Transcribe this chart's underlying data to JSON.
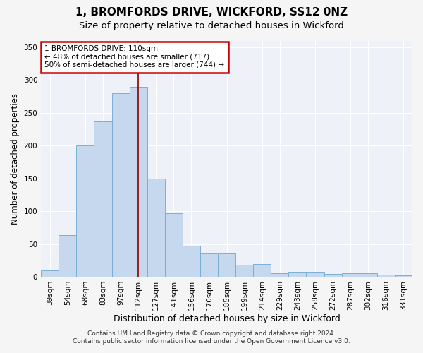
{
  "title1": "1, BROMFORDS DRIVE, WICKFORD, SS12 0NZ",
  "title2": "Size of property relative to detached houses in Wickford",
  "xlabel": "Distribution of detached houses by size in Wickford",
  "ylabel": "Number of detached properties",
  "categories": [
    "39sqm",
    "54sqm",
    "68sqm",
    "83sqm",
    "97sqm",
    "112sqm",
    "127sqm",
    "141sqm",
    "156sqm",
    "170sqm",
    "185sqm",
    "199sqm",
    "214sqm",
    "229sqm",
    "243sqm",
    "258sqm",
    "272sqm",
    "287sqm",
    "302sqm",
    "316sqm",
    "331sqm"
  ],
  "values": [
    10,
    63,
    200,
    237,
    280,
    290,
    150,
    97,
    47,
    35,
    35,
    18,
    19,
    5,
    8,
    7,
    4,
    5,
    5,
    3,
    2
  ],
  "bar_color": "#c5d8ed",
  "bar_edge_color": "#7bafd4",
  "vline_index": 5,
  "annotation_line0": "1 BROMFORDS DRIVE: 110sqm",
  "annotation_line1": "← 48% of detached houses are smaller (717)",
  "annotation_line2": "50% of semi-detached houses are larger (744) →",
  "vline_color": "#8b0000",
  "box_edgecolor": "#cc0000",
  "ylim": [
    0,
    360
  ],
  "yticks": [
    0,
    50,
    100,
    150,
    200,
    250,
    300,
    350
  ],
  "footnote1": "Contains HM Land Registry data © Crown copyright and database right 2024.",
  "footnote2": "Contains public sector information licensed under the Open Government Licence v3.0.",
  "bg_color": "#eef2f8",
  "grid_color": "#ffffff",
  "title1_fontsize": 11,
  "title2_fontsize": 9.5,
  "xlabel_fontsize": 9,
  "ylabel_fontsize": 8.5,
  "tick_fontsize": 7.5,
  "annotation_fontsize": 7.5,
  "footnote_fontsize": 6.5
}
